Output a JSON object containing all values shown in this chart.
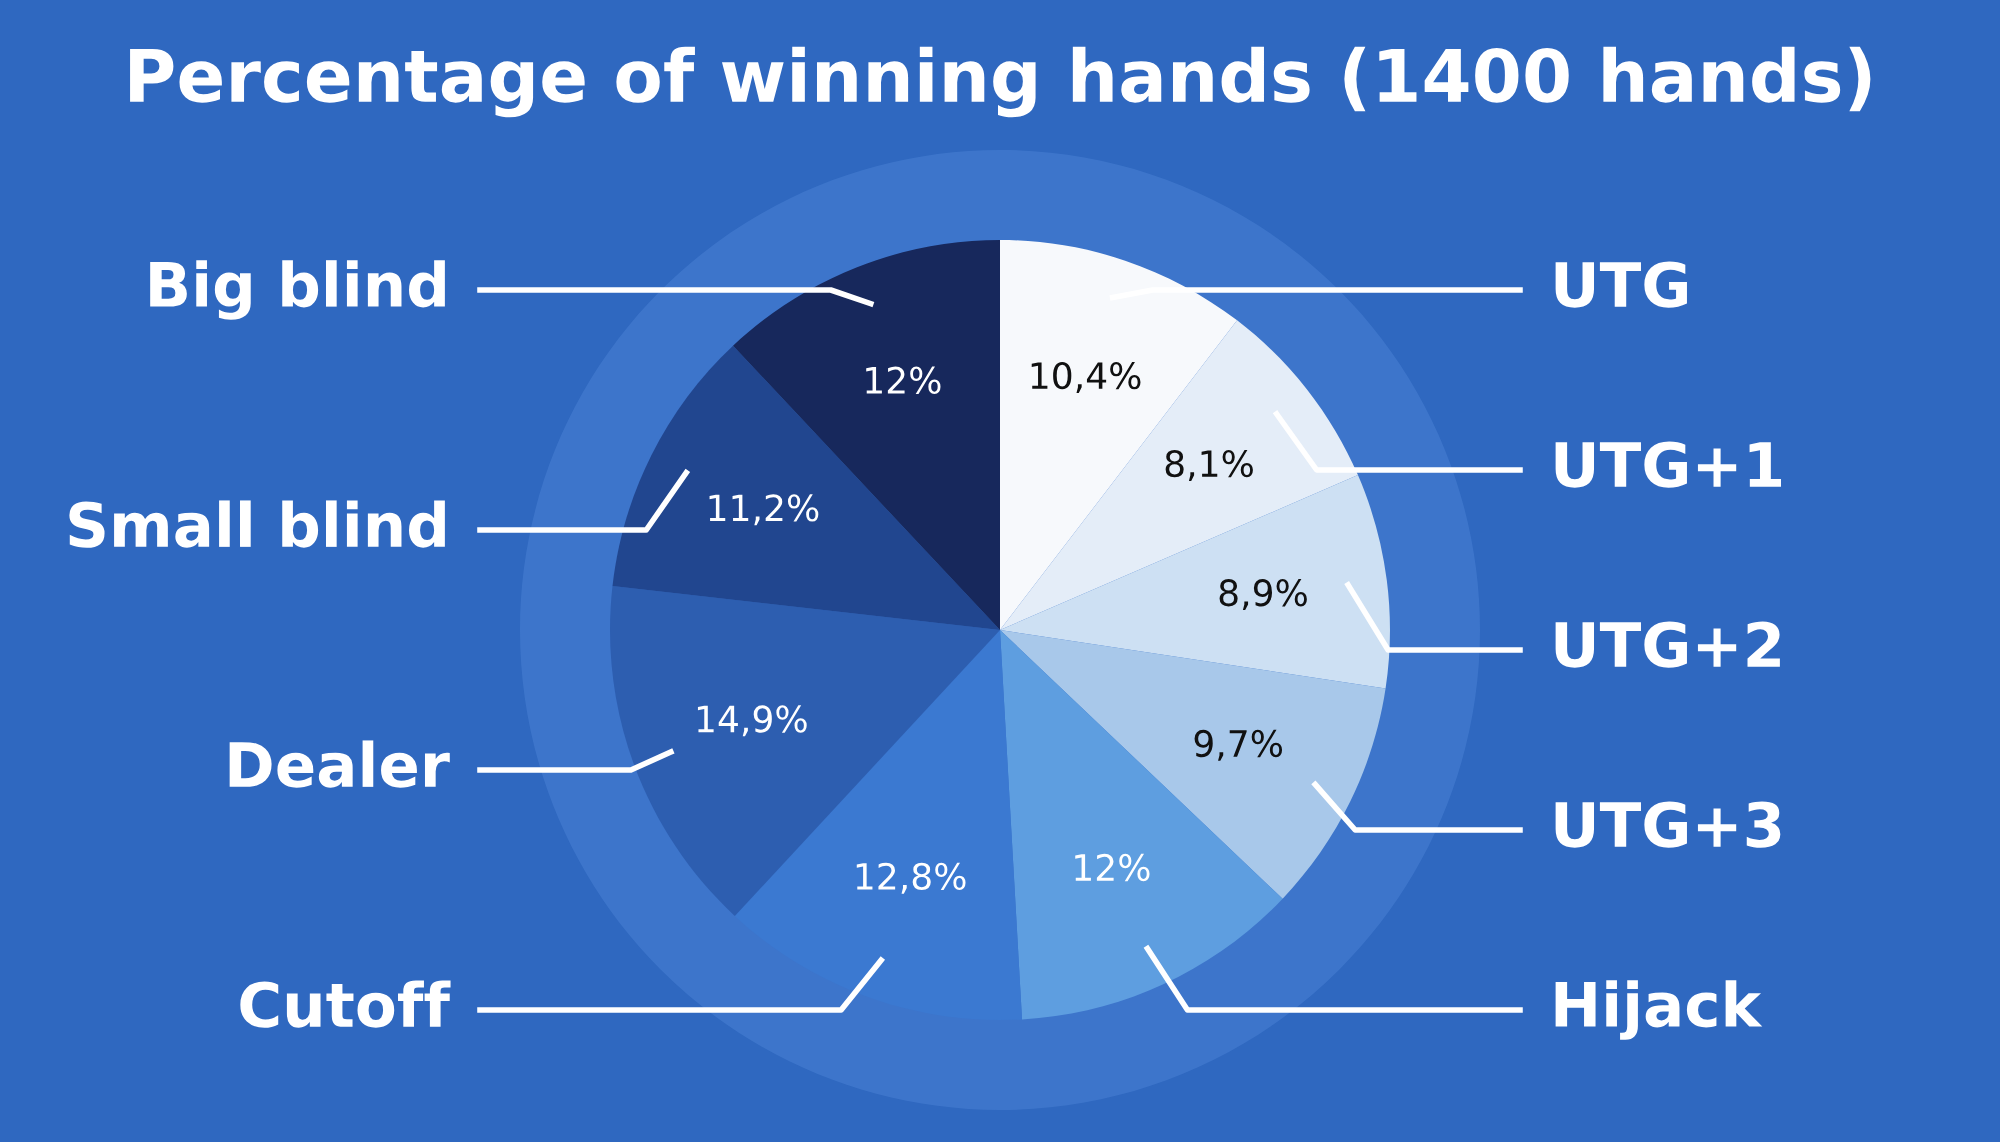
{
  "chart_data": {
    "type": "pie",
    "title": "Percentage of winning hands (1400 hands)",
    "categories": [
      "UTG",
      "UTG+1",
      "UTG+2",
      "UTG+3",
      "Hijack",
      "Cutoff",
      "Dealer",
      "Small blind",
      "Big blind"
    ],
    "values": [
      10.4,
      8.1,
      8.9,
      9.7,
      12,
      12.8,
      14.9,
      11.2,
      12
    ],
    "value_labels": [
      "10,4%",
      "8,1%",
      "8,9%",
      "9,7%",
      "12%",
      "12,8%",
      "14,9%",
      "11,2%",
      "12%"
    ],
    "colors": [
      "#f7f9fc",
      "#e4edf8",
      "#cde0f3",
      "#a8c8ea",
      "#5e9ee0",
      "#3b79d1",
      "#2d5eb0",
      "#21468f",
      "#17285c"
    ]
  }
}
